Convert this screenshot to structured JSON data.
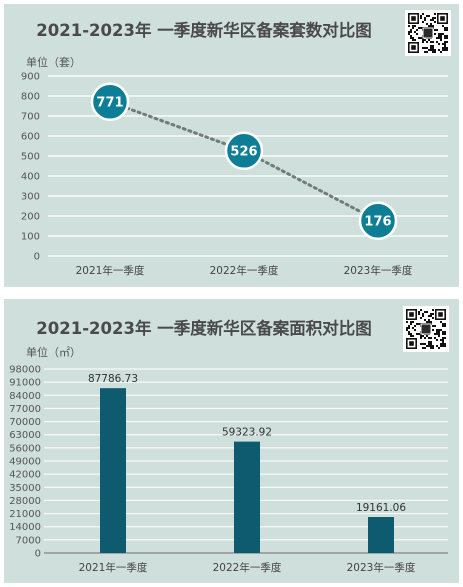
{
  "chart_data": [
    {
      "type": "line",
      "title": "2021-2023年 一季度新华区备案套数对比图",
      "unit_label": "单位（套）",
      "categories": [
        "2021年一季度",
        "2022年一季度",
        "2023年一季度"
      ],
      "values": [
        771,
        526,
        176
      ],
      "ylim": [
        0,
        900
      ],
      "yticks": [
        0,
        100,
        200,
        300,
        400,
        500,
        600,
        700,
        800,
        900
      ],
      "grid": true,
      "colors": {
        "marker": "#0e7d96",
        "line": "#6f7c79",
        "background": "#cfe0dc"
      }
    },
    {
      "type": "bar",
      "title": "2021-2023年 一季度新华区备案面积对比图",
      "unit_label": "单位（㎡）",
      "categories": [
        "2021年一季度",
        "2022年一季度",
        "2023年一季度"
      ],
      "values": [
        87786.73,
        59323.92,
        19161.06
      ],
      "value_labels": [
        "87786.73",
        "59323.92",
        "19161.06"
      ],
      "ylim": [
        0,
        98000
      ],
      "yticks": [
        0,
        7000,
        14000,
        21000,
        28000,
        35000,
        42000,
        49000,
        56000,
        63000,
        70000,
        77000,
        84000,
        91000,
        98000
      ],
      "grid": true,
      "colors": {
        "bar": "#0e5a6e",
        "background": "#cfe0dc"
      }
    }
  ],
  "icons": {
    "qr": "qr-code-icon"
  }
}
